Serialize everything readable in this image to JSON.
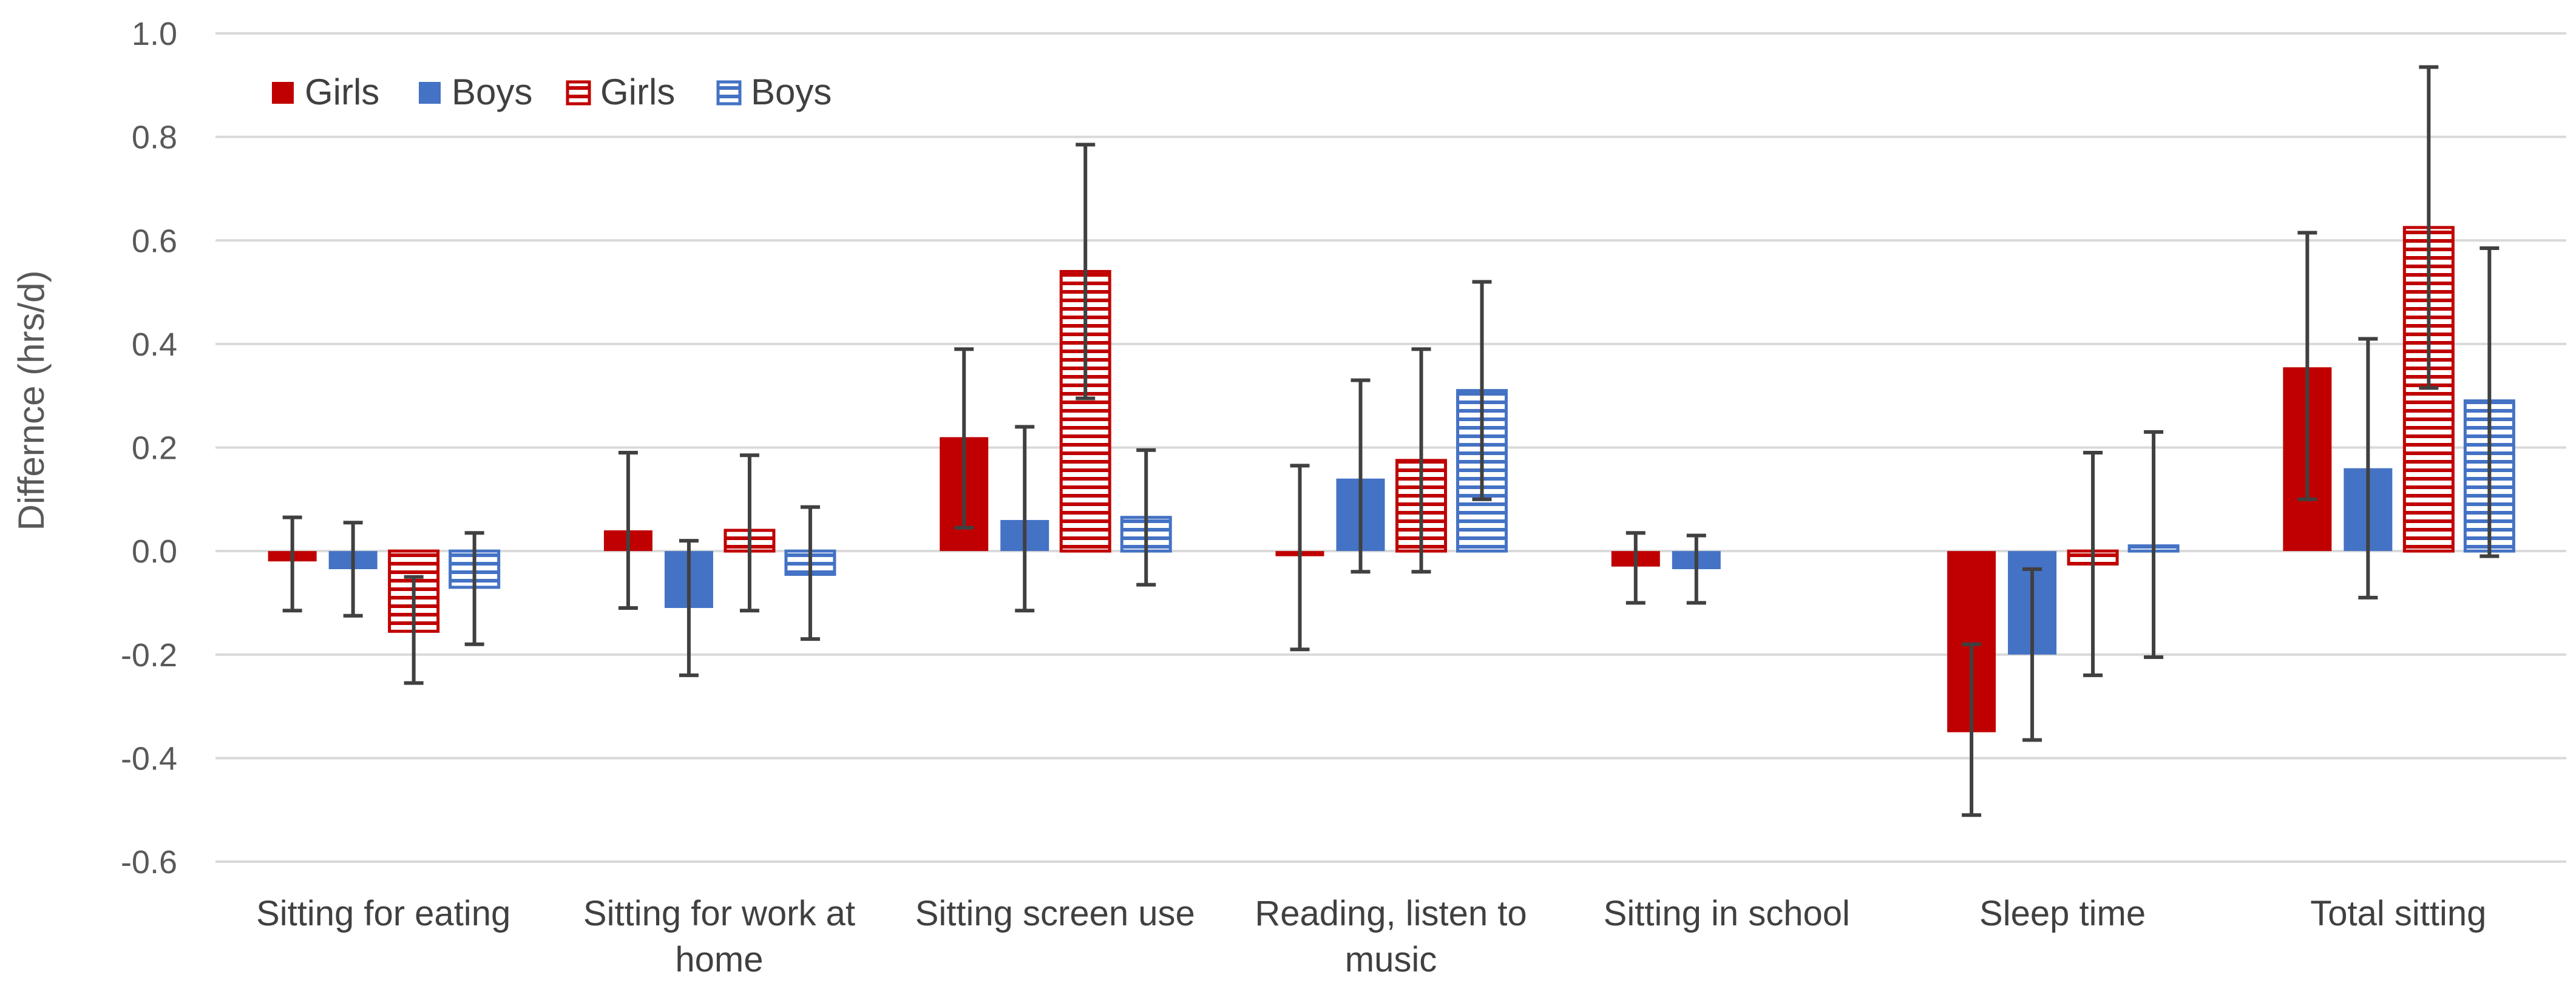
{
  "chart_data": {
    "type": "bar",
    "title": "",
    "xlabel": "",
    "ylabel": "Differnce (hrs/d)",
    "ylim": [
      -0.6,
      1.0
    ],
    "ytick_labels": [
      "-0.6",
      "-0.4",
      "-0.2",
      "0.0",
      "0.2",
      "0.4",
      "0.6",
      "0.8",
      "1.0"
    ],
    "grid": true,
    "legend_position": "top-left",
    "categories": [
      "Sitting for eating",
      "Sitting for work at home",
      "Sitting screen use",
      "Reading, listen to music",
      "Sitting in school",
      "Sleep time",
      "Total sitting"
    ],
    "category_lines": [
      [
        "Sitting for eating"
      ],
      [
        "Sitting for work at",
        "home"
      ],
      [
        "Sitting screen use"
      ],
      [
        "Reading, listen to",
        "music"
      ],
      [
        "Sitting in school"
      ],
      [
        "Sleep time"
      ],
      [
        "Total sitting"
      ]
    ],
    "series": [
      {
        "name": "Girls",
        "style": "solid",
        "color": "#c00000",
        "values": [
          -0.02,
          0.04,
          0.22,
          -0.01,
          -0.03,
          -0.35,
          0.355
        ],
        "err_low": [
          -0.115,
          -0.11,
          0.045,
          -0.19,
          -0.1,
          -0.51,
          0.1
        ],
        "err_high": [
          0.065,
          0.19,
          0.39,
          0.165,
          0.035,
          -0.18,
          0.615
        ]
      },
      {
        "name": "Boys",
        "style": "solid",
        "color": "#4472c4",
        "values": [
          -0.035,
          -0.11,
          0.06,
          0.14,
          -0.035,
          -0.2,
          0.16
        ],
        "err_low": [
          -0.125,
          -0.24,
          -0.115,
          -0.04,
          -0.1,
          -0.365,
          -0.09
        ],
        "err_high": [
          0.055,
          0.02,
          0.24,
          0.33,
          0.03,
          -0.035,
          0.41
        ]
      },
      {
        "name": "Girls",
        "style": "hatched",
        "color": "#c00000",
        "values": [
          -0.155,
          0.04,
          0.54,
          0.175,
          null,
          -0.025,
          0.625
        ],
        "err_low": [
          -0.255,
          -0.115,
          0.295,
          -0.04,
          null,
          -0.24,
          0.315
        ],
        "err_high": [
          -0.05,
          0.185,
          0.785,
          0.39,
          null,
          0.19,
          0.935
        ]
      },
      {
        "name": "Boys",
        "style": "hatched",
        "color": "#4472c4",
        "values": [
          -0.07,
          -0.045,
          0.065,
          0.31,
          null,
          0.01,
          0.29
        ],
        "err_low": [
          -0.18,
          -0.17,
          -0.065,
          0.1,
          null,
          -0.205,
          -0.01
        ],
        "err_high": [
          0.035,
          0.085,
          0.195,
          0.52,
          null,
          0.23,
          0.585
        ]
      }
    ]
  }
}
